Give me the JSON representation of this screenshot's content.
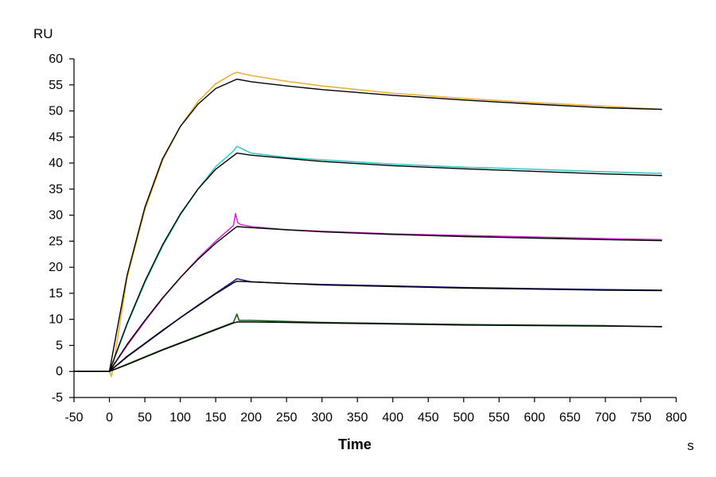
{
  "chart_data": {
    "type": "line",
    "title": "",
    "ylabel": "RU",
    "xlabel": "Time",
    "x_unit": "s",
    "xlim": [
      -50,
      800
    ],
    "ylim": [
      -5,
      60
    ],
    "x_ticks": [
      -50,
      0,
      50,
      100,
      150,
      200,
      250,
      300,
      350,
      400,
      450,
      500,
      550,
      600,
      650,
      700,
      750,
      800
    ],
    "y_ticks": [
      -5,
      0,
      5,
      10,
      15,
      20,
      25,
      30,
      35,
      40,
      45,
      50,
      55,
      60
    ],
    "grid": false,
    "association_end": 180,
    "series": [
      {
        "color": "#e6b33c",
        "x": [
          -50,
          0,
          3,
          25,
          50,
          75,
          100,
          125,
          150,
          175,
          180,
          200,
          250,
          300,
          400,
          500,
          600,
          700,
          780
        ],
        "y": [
          0,
          0,
          -1,
          18,
          31,
          40.5,
          47,
          51.8,
          55.2,
          57.2,
          57.4,
          56.8,
          55.7,
          54.8,
          53.4,
          52.4,
          51.6,
          50.9,
          50.3
        ]
      },
      {
        "color": "#3ec8c8",
        "x": [
          -50,
          0,
          25,
          50,
          75,
          100,
          125,
          150,
          175,
          180,
          200,
          250,
          300,
          400,
          500,
          600,
          700,
          780
        ],
        "y": [
          0,
          0,
          9,
          17,
          24,
          30,
          35,
          39.3,
          42.3,
          43.2,
          41.9,
          41.1,
          40.6,
          39.8,
          39.2,
          38.8,
          38.3,
          38
        ]
      },
      {
        "color": "#cc33cc",
        "x": [
          -50,
          0,
          25,
          50,
          75,
          100,
          125,
          150,
          175,
          178,
          181,
          185,
          200,
          250,
          300,
          400,
          500,
          600,
          700,
          780
        ],
        "y": [
          0,
          0,
          5,
          9.6,
          14,
          18,
          21.7,
          25,
          28,
          30.3,
          28.6,
          28.2,
          27.8,
          27.2,
          26.9,
          26.4,
          26.1,
          25.8,
          25.5,
          25.3
        ]
      },
      {
        "color": "#1c1c8c",
        "x": [
          -50,
          0,
          25,
          50,
          75,
          100,
          125,
          150,
          175,
          180,
          200,
          250,
          300,
          400,
          500,
          600,
          700,
          780
        ],
        "y": [
          0,
          0,
          2.8,
          5.3,
          7.8,
          10.3,
          12.7,
          15,
          17.3,
          17.8,
          17.2,
          16.9,
          16.7,
          16.4,
          16.1,
          15.9,
          15.7,
          15.6
        ]
      },
      {
        "color": "#1c5c1c",
        "x": [
          -50,
          0,
          25,
          50,
          75,
          100,
          125,
          150,
          175,
          180,
          183,
          200,
          250,
          300,
          400,
          500,
          600,
          700,
          780
        ],
        "y": [
          0,
          0,
          1.4,
          2.8,
          4.2,
          5.5,
          6.8,
          8.1,
          9.4,
          11,
          9.8,
          9.8,
          9.6,
          9.4,
          9.2,
          9.0,
          8.9,
          8.8,
          8.6
        ]
      }
    ],
    "fits": [
      {
        "x": [
          -50,
          0,
          25,
          50,
          75,
          100,
          125,
          150,
          175,
          180,
          200,
          250,
          300,
          400,
          500,
          600,
          700,
          780
        ],
        "y": [
          0,
          0,
          18.5,
          31.5,
          40.8,
          47,
          51.3,
          54.3,
          55.8,
          56.1,
          55.6,
          54.8,
          54.1,
          53,
          52.1,
          51.3,
          50.6,
          50.3
        ]
      },
      {
        "x": [
          -50,
          0,
          25,
          50,
          75,
          100,
          125,
          150,
          175,
          180,
          200,
          250,
          300,
          400,
          500,
          600,
          700,
          780
        ],
        "y": [
          0,
          0,
          9.2,
          17.3,
          24.3,
          30.2,
          35,
          38.8,
          41.4,
          41.9,
          41.5,
          40.9,
          40.3,
          39.5,
          38.9,
          38.4,
          37.9,
          37.6
        ]
      },
      {
        "x": [
          -50,
          0,
          25,
          50,
          75,
          100,
          125,
          150,
          175,
          180,
          200,
          250,
          300,
          400,
          500,
          600,
          700,
          780
        ],
        "y": [
          0,
          0,
          5.2,
          9.8,
          14.1,
          18,
          21.5,
          24.6,
          27.3,
          27.8,
          27.6,
          27.2,
          26.8,
          26.3,
          25.9,
          25.6,
          25.3,
          25.1
        ]
      },
      {
        "x": [
          -50,
          0,
          25,
          50,
          75,
          100,
          125,
          150,
          175,
          180,
          200,
          250,
          300,
          400,
          500,
          600,
          700,
          780
        ],
        "y": [
          0,
          0,
          2.9,
          5.4,
          7.9,
          10.3,
          12.6,
          14.9,
          17,
          17.3,
          17.2,
          16.9,
          16.6,
          16.3,
          16,
          15.8,
          15.6,
          15.5
        ]
      },
      {
        "x": [
          -50,
          0,
          25,
          50,
          75,
          100,
          125,
          150,
          175,
          180,
          200,
          250,
          300,
          400,
          500,
          600,
          700,
          780
        ],
        "y": [
          0,
          0,
          1.3,
          2.7,
          4.1,
          5.4,
          6.7,
          8,
          9.3,
          9.5,
          9.5,
          9.4,
          9.3,
          9.1,
          8.9,
          8.8,
          8.7,
          8.6
        ]
      }
    ]
  }
}
